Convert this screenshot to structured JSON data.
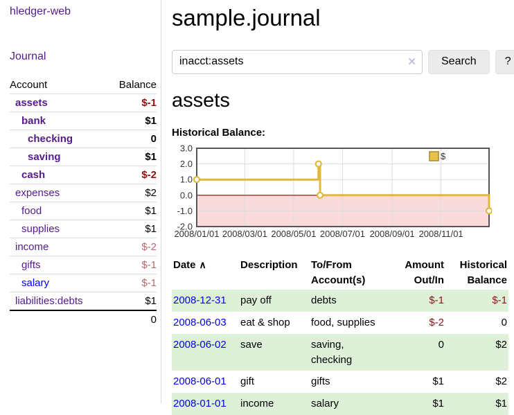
{
  "colors": {
    "link_purple": "#551A8B",
    "link_blue": "#0000EE",
    "negative_strong": "#8b1414",
    "negative_muted": "#b5686f",
    "row_green": "#dff0d8",
    "chart_line": "#e0b83e",
    "chart_marker_fill": "#ffffff",
    "chart_legend_fill": "#e8c24a",
    "chart_legend_border": "#a8882a",
    "chart_negative_fill": "#fadbdb",
    "chart_zero_line": "#990000",
    "chart_grid": "#dddddd",
    "chart_border": "#555555"
  },
  "sidebar": {
    "brand": "hledger-web",
    "journal_label": "Journal",
    "col_account": "Account",
    "col_balance": "Balance",
    "accounts": [
      {
        "name": "assets",
        "indent": 1,
        "bold": true,
        "blue": false,
        "balance": "$-1",
        "balance_class": "neg-strong"
      },
      {
        "name": "bank",
        "indent": 2,
        "bold": true,
        "blue": false,
        "balance": "$1",
        "balance_class": ""
      },
      {
        "name": "checking",
        "indent": 3,
        "bold": true,
        "blue": false,
        "balance": "0",
        "balance_class": ""
      },
      {
        "name": "saving",
        "indent": 3,
        "bold": true,
        "blue": false,
        "balance": "$1",
        "balance_class": ""
      },
      {
        "name": "cash",
        "indent": 2,
        "bold": true,
        "blue": false,
        "balance": "$-2",
        "balance_class": "neg-strong"
      },
      {
        "name": "expenses",
        "indent": 1,
        "bold": false,
        "blue": false,
        "balance": "$2",
        "balance_class": ""
      },
      {
        "name": "food",
        "indent": 2,
        "bold": false,
        "blue": false,
        "balance": "$1",
        "balance_class": ""
      },
      {
        "name": "supplies",
        "indent": 2,
        "bold": false,
        "blue": false,
        "balance": "$1",
        "balance_class": ""
      },
      {
        "name": "income",
        "indent": 1,
        "bold": false,
        "blue": false,
        "balance": "$-2",
        "balance_class": "neg-muted"
      },
      {
        "name": "gifts",
        "indent": 2,
        "bold": false,
        "blue": false,
        "balance": "$-1",
        "balance_class": "neg-muted"
      },
      {
        "name": "salary",
        "indent": 2,
        "bold": false,
        "blue": true,
        "balance": "$-1",
        "balance_class": "neg-muted"
      },
      {
        "name": "liabilities:debts",
        "indent": 1,
        "bold": false,
        "blue": false,
        "balance": "$1",
        "balance_class": ""
      }
    ],
    "total": "0"
  },
  "header": {
    "title": "sample.journal"
  },
  "search": {
    "value": "inacct:assets",
    "clear_icon": "✕",
    "button_label": "Search",
    "help_label": "?"
  },
  "main": {
    "account_heading": "assets",
    "chart_title": "Historical Balance:"
  },
  "chart_data": {
    "type": "line",
    "step": true,
    "title": "Historical Balance:",
    "series": [
      {
        "name": "$",
        "points": [
          [
            "2008-01-01",
            1
          ],
          [
            "2008-06-01",
            2
          ],
          [
            "2008-06-03",
            0
          ],
          [
            "2008-12-31",
            -1
          ]
        ]
      }
    ],
    "ylim": [
      -2,
      3
    ],
    "yticks": [
      3,
      2,
      1,
      0,
      -1,
      -2
    ],
    "ytick_labels": [
      "3.0",
      "2.0",
      "1.0",
      "0.0",
      "-1.0",
      "-2.0"
    ],
    "xtick_dates": [
      "2008-01-01",
      "2008-03-01",
      "2008-05-01",
      "2008-07-01",
      "2008-09-01",
      "2008-11-01"
    ],
    "xtick_labels": [
      "2008/01/01",
      "2008/03/01",
      "2008/05/01",
      "2008/07/01",
      "2008/09/01",
      "2008/11/01"
    ],
    "legend": {
      "label": "$",
      "position": "top-right"
    },
    "grid": true,
    "negative_region_shaded": true
  },
  "register": {
    "columns": {
      "date": "Date",
      "description": "Description",
      "accounts": "To/From Account(s)",
      "amount": "Amount Out/In",
      "balance": "Historical Balance"
    },
    "sort_icon": "∧",
    "rows": [
      {
        "date": "2008-12-31",
        "description": "pay off",
        "accounts": "debts",
        "amount": "$-1",
        "amount_class": "neg",
        "balance": "$-1",
        "balance_class": "neg",
        "green": true
      },
      {
        "date": "2008-06-03",
        "description": "eat & shop",
        "accounts": "food, supplies",
        "amount": "$-2",
        "amount_class": "neg",
        "balance": "0",
        "balance_class": "",
        "green": false
      },
      {
        "date": "2008-06-02",
        "description": "save",
        "accounts": "saving, checking",
        "amount": "0",
        "amount_class": "",
        "balance": "$2",
        "balance_class": "",
        "green": true
      },
      {
        "date": "2008-06-01",
        "description": "gift",
        "accounts": "gifts",
        "amount": "$1",
        "amount_class": "",
        "balance": "$2",
        "balance_class": "",
        "green": false
      },
      {
        "date": "2008-01-01",
        "description": "income",
        "accounts": "salary",
        "amount": "$1",
        "amount_class": "",
        "balance": "$1",
        "balance_class": "",
        "green": true
      }
    ]
  }
}
